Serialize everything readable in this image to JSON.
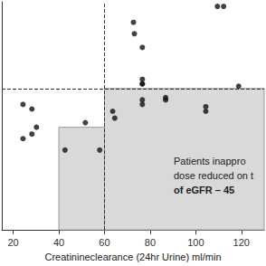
{
  "chart_data": {
    "type": "scatter",
    "x_label": "Creatinineclearance (24hr Urine) ml/min",
    "x": [
      24.3,
      24.3,
      28.2,
      28.2,
      30.2,
      42.7,
      51.6,
      57.9,
      63.6,
      64.5,
      72.7,
      73.1,
      76.6,
      76.6,
      76.6,
      76.6,
      76.6,
      76.6,
      86.8,
      86.8,
      104.4,
      104.4,
      109.5,
      112.2,
      118.8
    ],
    "values": [
      5.5,
      4.0,
      5.3,
      4.2,
      4.5,
      3.5,
      4.7,
      3.5,
      5.2,
      4.9,
      9.1,
      8.6,
      8.0,
      6.6,
      6.4,
      6.4,
      5.7,
      5.5,
      5.8,
      5.7,
      5.4,
      5.2,
      9.8,
      9.8,
      6.3
    ],
    "color": "#111111",
    "marker": "circle",
    "xlim": [
      15,
      130
    ],
    "xticks": [
      20,
      40,
      60,
      80,
      100,
      120
    ],
    "ylim": [
      0,
      10
    ],
    "tick_labels": "x",
    "grid": false,
    "reference_lines": {
      "x": 60,
      "y": 6.2
    },
    "regions": [
      {
        "x": [
          40,
          60
        ],
        "y": [
          0,
          4.5
        ]
      },
      {
        "x": [
          60,
          130
        ],
        "y": [
          0,
          6.2
        ]
      }
    ],
    "annotations": [
      "Patients inappro",
      "dose reduced on t",
      "of eGFR – 45"
    ]
  }
}
